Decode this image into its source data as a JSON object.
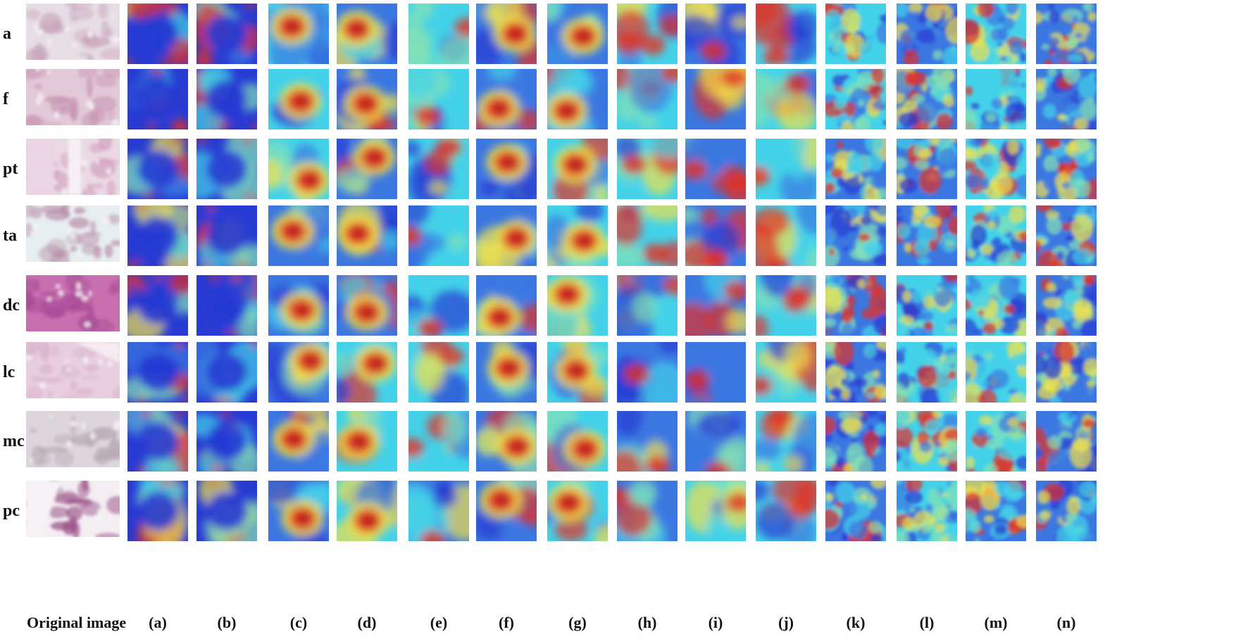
{
  "rows": [
    {
      "label": "a",
      "variant": 0
    },
    {
      "label": "f",
      "variant": 1
    },
    {
      "label": "pt",
      "variant": 2
    },
    {
      "label": "ta",
      "variant": 3
    },
    {
      "label": "dc",
      "variant": 4
    },
    {
      "label": "lc",
      "variant": 5
    },
    {
      "label": "mc",
      "variant": 6
    },
    {
      "label": "pc",
      "variant": 7
    }
  ],
  "columns": [
    "Original image",
    "(a)",
    "(b)",
    "(c)",
    "(d)",
    "(e)",
    "(f)",
    "(g)",
    "(h)",
    "(i)",
    "(j)",
    "(k)",
    "(l)",
    "(m)",
    "(n)"
  ],
  "colors": {
    "jet_blue": "#1a2fd0",
    "jet_cyan": "#38d0e8",
    "jet_yellow": "#f0e040",
    "jet_red": "#e02418",
    "tissue_pink": "#e6b6cf",
    "tissue_bg": "#f3eef2"
  }
}
